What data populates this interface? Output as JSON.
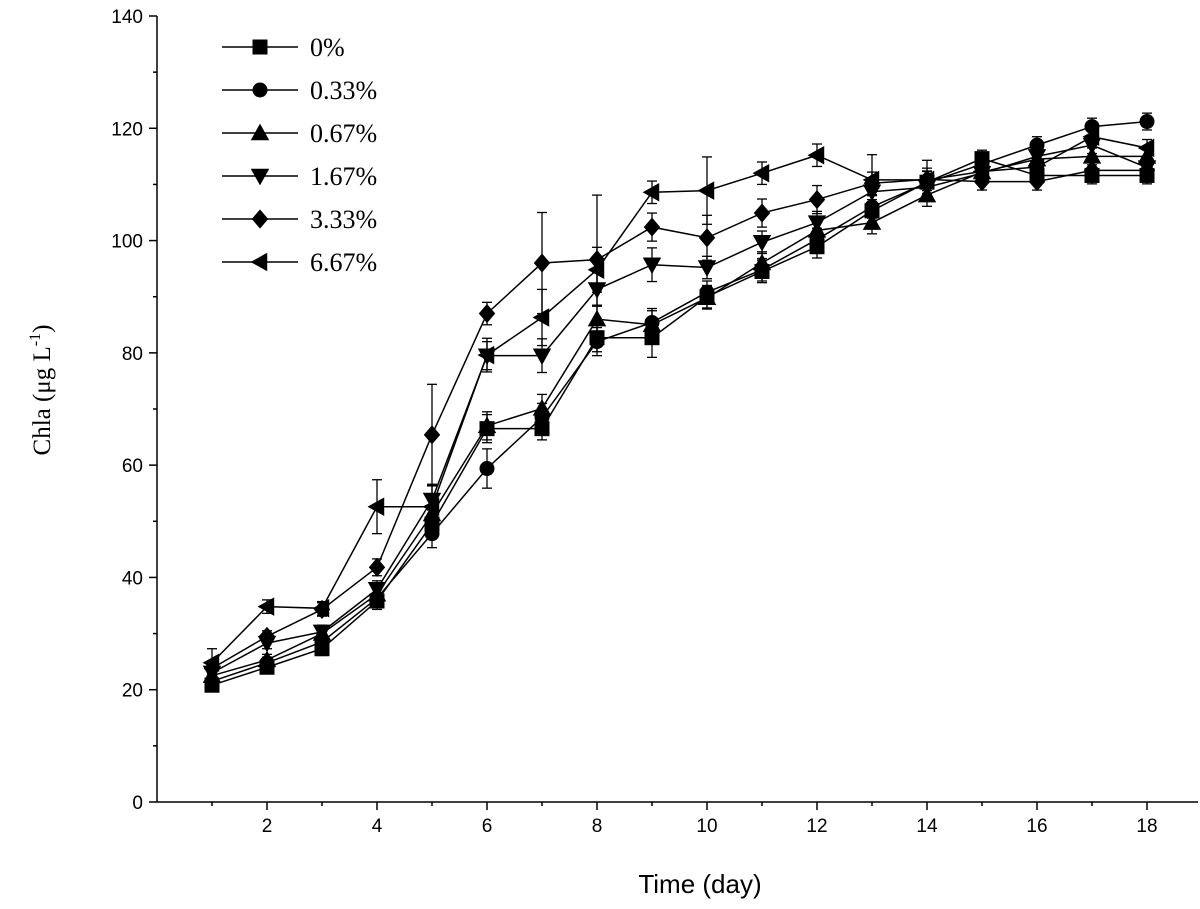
{
  "chart_data": {
    "type": "line",
    "title": "",
    "xlabel": "Time (day)",
    "ylabel_main": "Chla (",
    "ylabel_unit": "μg L",
    "ylabel_sup": "-1",
    "ylabel_close": ")",
    "xlim": [
      0,
      18.5
    ],
    "ylim": [
      0,
      140
    ],
    "xticks": [
      2,
      4,
      6,
      8,
      10,
      12,
      14,
      16,
      18
    ],
    "yticks": [
      0,
      20,
      40,
      60,
      80,
      100,
      120,
      140
    ],
    "xtick_labels": [
      "2",
      "4",
      "6",
      "8",
      "10",
      "12",
      "14",
      "16",
      "18"
    ],
    "ytick_labels": [
      "0",
      "20",
      "40",
      "60",
      "80",
      "100",
      "120",
      "140"
    ],
    "x": [
      1,
      2,
      3,
      4,
      5,
      6,
      7,
      8,
      9,
      10,
      11,
      12,
      13,
      14,
      15,
      16,
      17,
      18
    ],
    "legend_position": "top-left",
    "series": [
      {
        "name": "0%",
        "marker": "square",
        "values": [
          20.8,
          24.0,
          27.3,
          35.8,
          49.5,
          66.5,
          66.5,
          82.7,
          82.7,
          90.0,
          94.5,
          98.9,
          105.3,
          110.4,
          114.6,
          111.6,
          111.6,
          111.6
        ],
        "errors": [
          1.0,
          1.0,
          1.2,
          1.5,
          2.5,
          2.5,
          2.0,
          2.5,
          3.5,
          2.0,
          2.0,
          2.0,
          2.0,
          2.0,
          1.5,
          1.5,
          1.5,
          1.5
        ]
      },
      {
        "name": "0.33%",
        "marker": "circle",
        "values": [
          21.5,
          24.8,
          28.5,
          36.3,
          47.8,
          59.4,
          68.5,
          82.0,
          85.4,
          90.8,
          94.8,
          100.2,
          106.0,
          110.3,
          113.6,
          117.0,
          120.3,
          121.2
        ],
        "errors": [
          1.0,
          1.0,
          1.2,
          1.5,
          2.5,
          3.5,
          2.5,
          2.5,
          2.5,
          2.0,
          2.0,
          2.0,
          2.0,
          2.0,
          1.5,
          1.5,
          1.5,
          1.5
        ]
      },
      {
        "name": "0.67%",
        "marker": "triangle-up",
        "values": [
          22.5,
          25.3,
          30.0,
          37.0,
          51.3,
          67.0,
          70.1,
          86.0,
          85.0,
          89.8,
          96.0,
          101.8,
          103.2,
          108.1,
          112.2,
          114.5,
          115.0,
          115.0
        ],
        "errors": [
          1.0,
          1.0,
          1.2,
          1.5,
          2.5,
          2.5,
          2.5,
          2.5,
          2.5,
          2.0,
          2.0,
          2.0,
          2.0,
          2.0,
          1.5,
          1.5,
          1.5,
          1.5
        ]
      },
      {
        "name": "1.67%",
        "marker": "triangle-down",
        "values": [
          23.0,
          28.3,
          30.3,
          37.9,
          53.8,
          79.5,
          79.5,
          91.3,
          95.7,
          95.2,
          99.7,
          103.2,
          108.7,
          109.5,
          112.0,
          115.0,
          117.0,
          113.0
        ],
        "errors": [
          1.0,
          1.0,
          1.2,
          1.5,
          2.5,
          2.5,
          3.0,
          3.0,
          3.0,
          2.0,
          2.0,
          2.0,
          2.0,
          2.0,
          1.5,
          1.5,
          1.5,
          1.5
        ]
      },
      {
        "name": "3.33%",
        "marker": "diamond",
        "values": [
          23.8,
          29.5,
          34.3,
          41.8,
          65.4,
          87.0,
          96.0,
          96.6,
          102.4,
          100.5,
          104.9,
          107.3,
          110.2,
          110.9,
          110.5,
          110.5,
          112.5,
          112.5
        ],
        "errors": [
          1.0,
          1.0,
          1.2,
          1.5,
          9.0,
          2.0,
          9.0,
          11.5,
          2.5,
          4.0,
          2.5,
          2.5,
          2.0,
          2.0,
          1.5,
          1.5,
          1.5,
          1.5
        ]
      },
      {
        "name": "6.67%",
        "marker": "triangle-left",
        "values": [
          24.8,
          34.8,
          34.5,
          52.6,
          52.6,
          79.6,
          86.3,
          94.8,
          108.6,
          108.9,
          112.0,
          115.2,
          110.8,
          110.8,
          112.3,
          113.1,
          118.5,
          116.5
        ],
        "errors": [
          2.5,
          1.2,
          1.2,
          4.8,
          4.0,
          3.0,
          5.0,
          4.0,
          2.0,
          6.0,
          2.0,
          2.0,
          4.5,
          3.5,
          1.5,
          2.0,
          2.0,
          1.5
        ]
      }
    ]
  }
}
